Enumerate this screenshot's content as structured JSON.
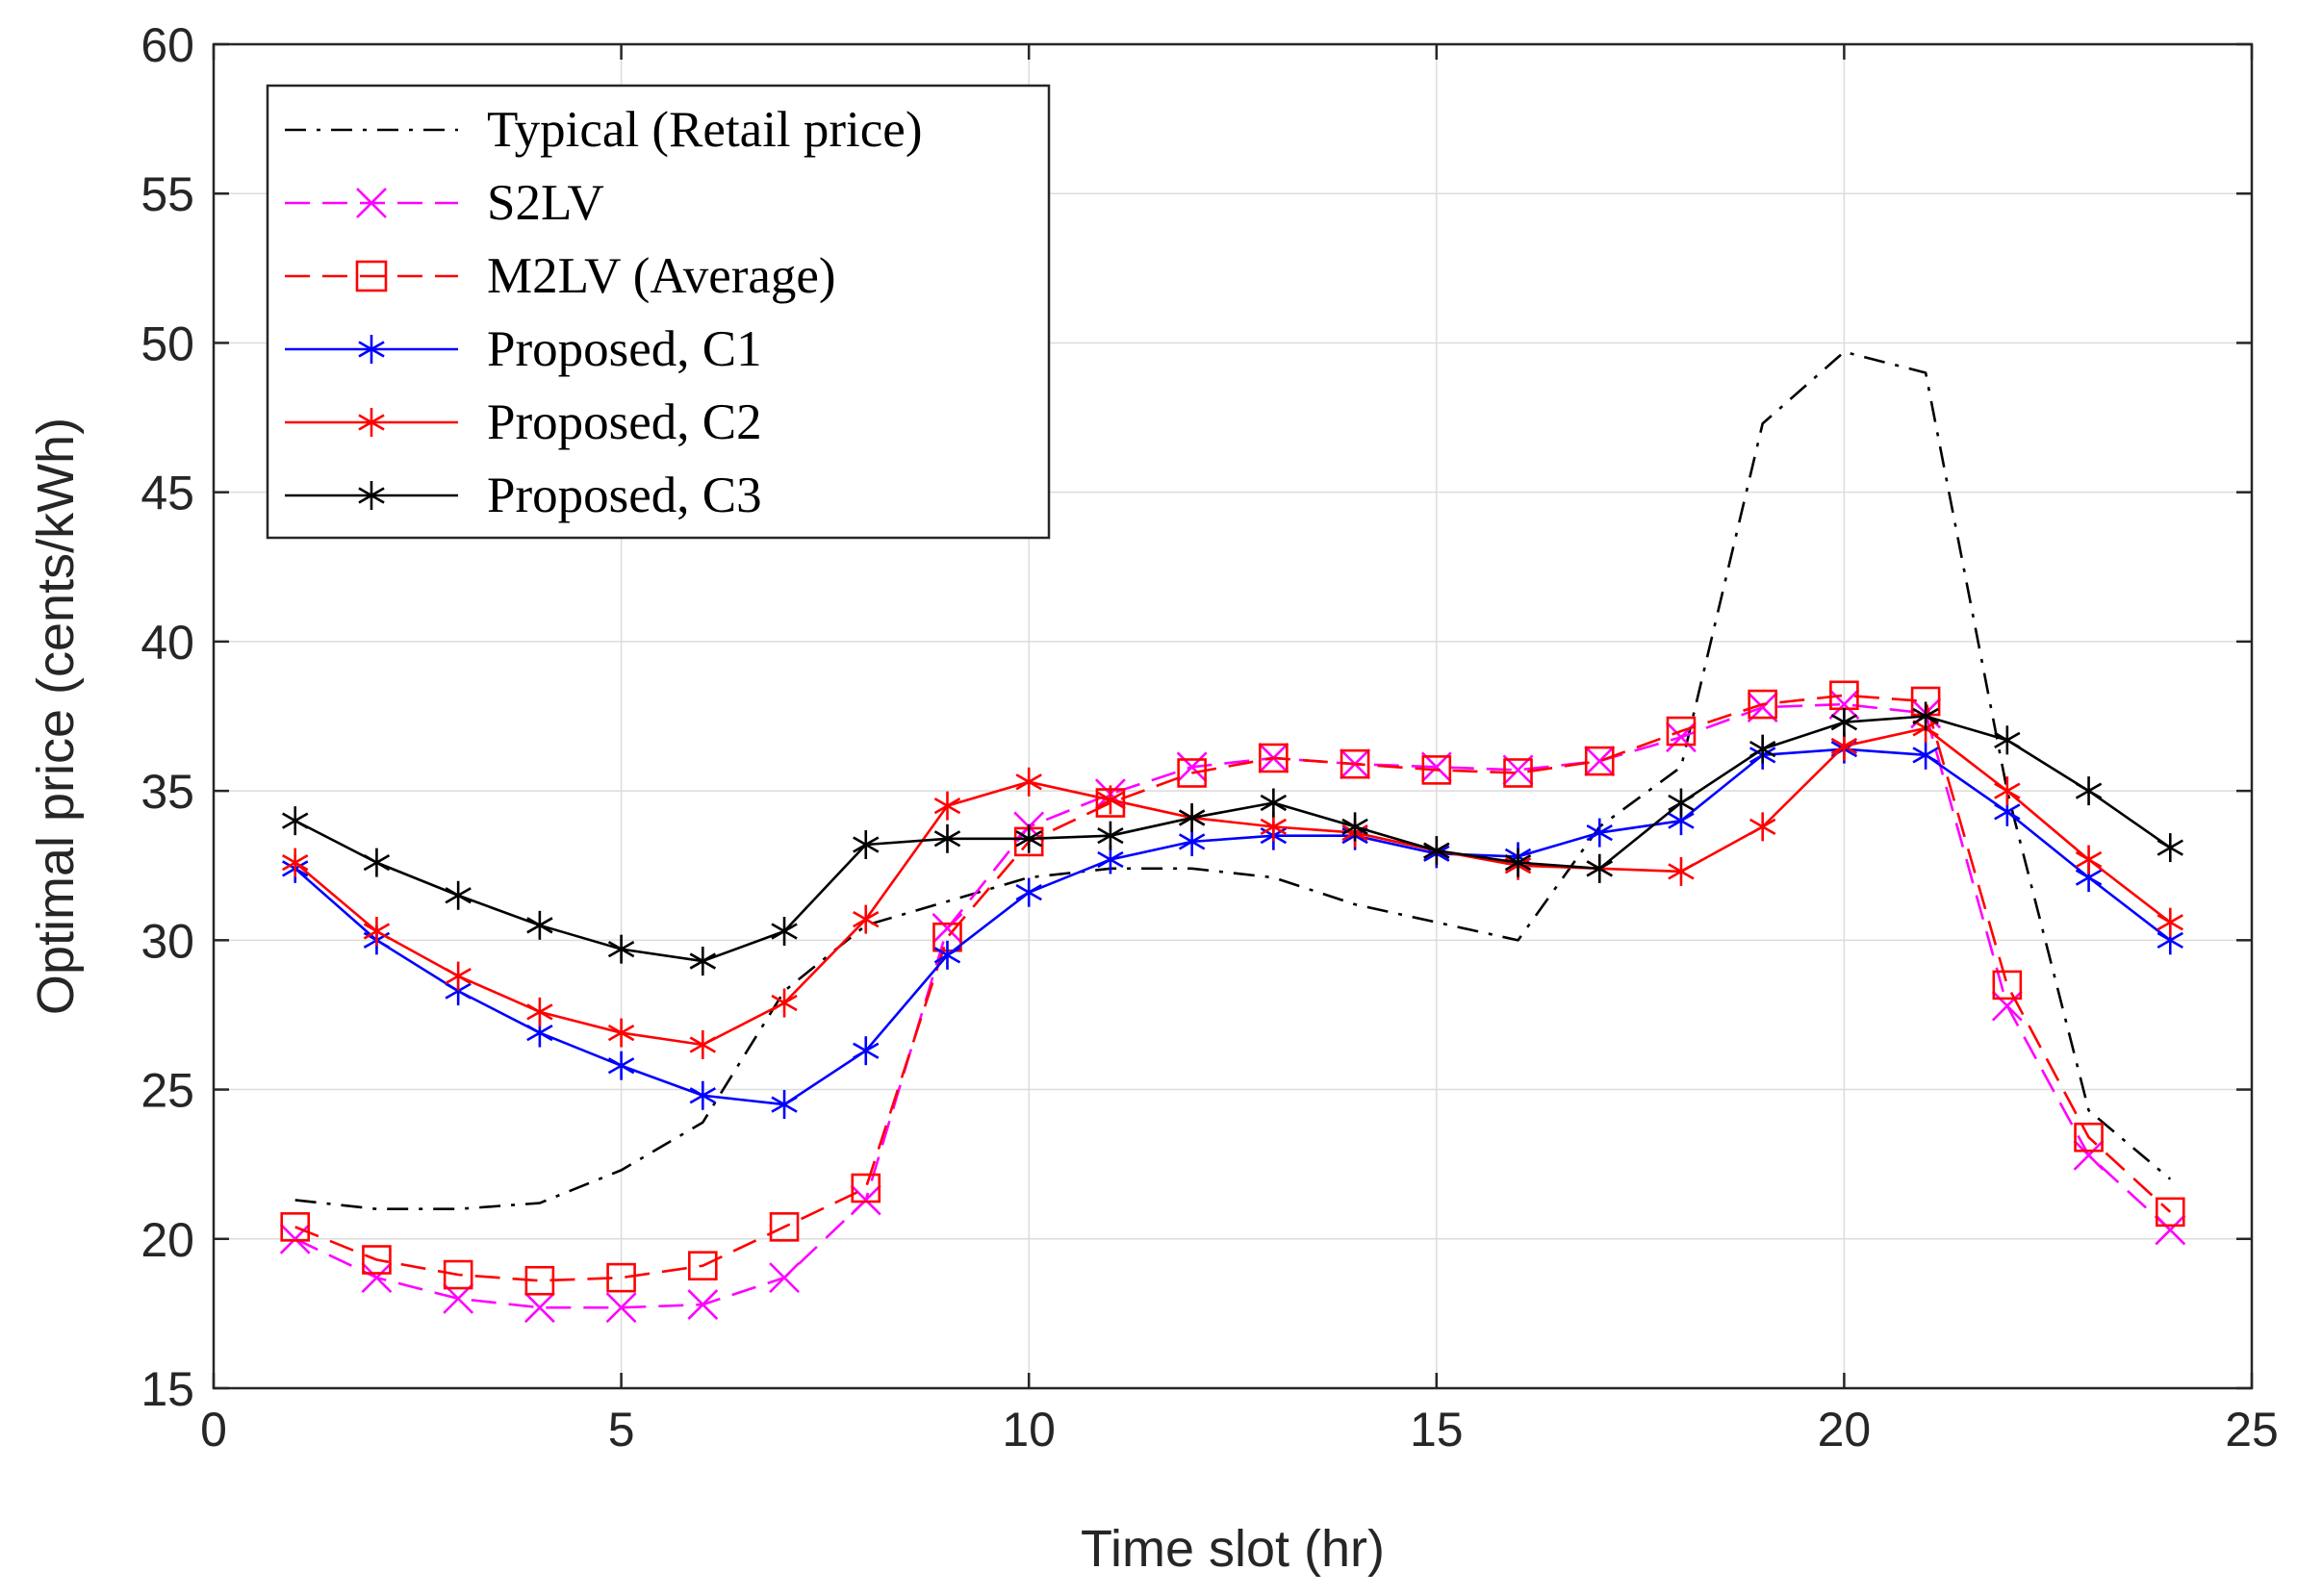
{
  "chart_data": {
    "type": "line",
    "title": "",
    "xlabel": "Time slot (hr)",
    "ylabel": "Optimal price (cents/kWh)",
    "xlim": [
      0,
      25
    ],
    "ylim": [
      15,
      60
    ],
    "xticks": [
      0,
      5,
      10,
      15,
      20,
      25
    ],
    "yticks": [
      15,
      20,
      25,
      30,
      35,
      40,
      45,
      50,
      55,
      60
    ],
    "grid": true,
    "legend_position": "top-left",
    "x": [
      1,
      2,
      3,
      4,
      5,
      6,
      7,
      8,
      9,
      10,
      11,
      12,
      13,
      14,
      15,
      16,
      17,
      18,
      19,
      20,
      21,
      22,
      23,
      24
    ],
    "series": [
      {
        "name": "Typical (Retail price)",
        "color": "#000000",
        "dash": "dashdot",
        "marker": "none",
        "values": [
          21.3,
          21.0,
          21.0,
          21.2,
          22.3,
          23.9,
          28.3,
          30.5,
          31.3,
          32.1,
          32.4,
          32.4,
          32.1,
          31.2,
          30.6,
          30.0,
          33.8,
          35.8,
          47.3,
          49.7,
          49.0,
          35.0,
          24.3,
          22.0
        ]
      },
      {
        "name": "S2LV",
        "color": "#ff00ff",
        "dash": "dashed",
        "marker": "x",
        "values": [
          20.0,
          18.7,
          18.0,
          17.7,
          17.7,
          17.8,
          18.7,
          21.3,
          30.4,
          33.8,
          34.9,
          35.8,
          36.1,
          35.9,
          35.8,
          35.7,
          36.0,
          36.8,
          37.8,
          37.9,
          37.6,
          27.8,
          22.8,
          20.3
        ]
      },
      {
        "name": "M2LV (Average)",
        "color": "#ff0000",
        "dash": "dashed",
        "marker": "square",
        "values": [
          20.4,
          19.3,
          18.8,
          18.6,
          18.7,
          19.1,
          20.4,
          21.7,
          30.1,
          33.3,
          34.6,
          35.6,
          36.1,
          35.9,
          35.7,
          35.6,
          36.0,
          37.0,
          37.9,
          38.2,
          38.0,
          28.5,
          23.4,
          20.9
        ]
      },
      {
        "name": "Proposed, C1",
        "color": "#0000ff",
        "dash": "solid",
        "marker": "asterisk",
        "values": [
          32.4,
          30.0,
          28.3,
          26.9,
          25.8,
          24.8,
          24.5,
          26.3,
          29.5,
          31.6,
          32.7,
          33.3,
          33.5,
          33.5,
          32.9,
          32.8,
          33.6,
          34.0,
          36.2,
          36.4,
          36.2,
          34.3,
          32.1,
          30.0
        ]
      },
      {
        "name": "Proposed, C2",
        "color": "#ff0000",
        "dash": "solid",
        "marker": "asterisk",
        "values": [
          32.6,
          30.3,
          28.8,
          27.6,
          26.9,
          26.5,
          27.9,
          30.7,
          34.5,
          35.3,
          34.7,
          34.1,
          33.8,
          33.6,
          33.0,
          32.5,
          32.4,
          32.3,
          33.8,
          36.5,
          37.1,
          35.0,
          32.7,
          30.6
        ]
      },
      {
        "name": "Proposed, C3",
        "color": "#000000",
        "dash": "solid",
        "marker": "asterisk",
        "values": [
          34.0,
          32.6,
          31.5,
          30.5,
          29.7,
          29.3,
          30.3,
          33.2,
          33.4,
          33.4,
          33.5,
          34.1,
          34.6,
          33.8,
          33.0,
          32.6,
          32.4,
          34.6,
          36.4,
          37.3,
          37.5,
          36.7,
          35.0,
          33.1
        ]
      }
    ]
  }
}
